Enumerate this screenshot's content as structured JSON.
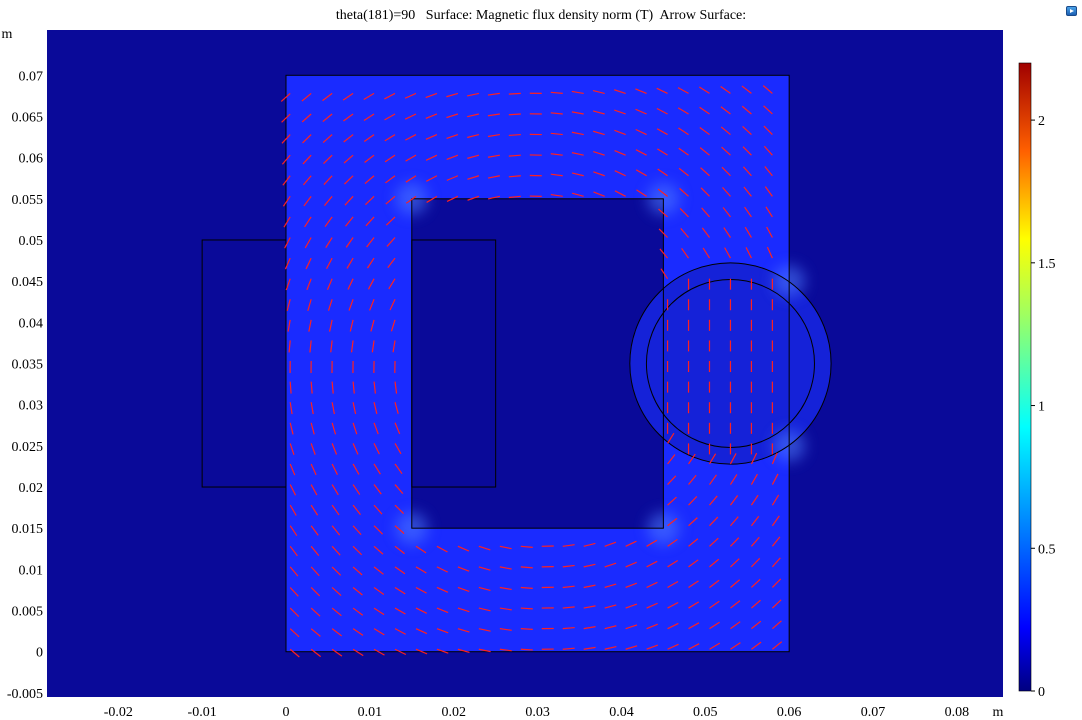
{
  "title": "theta(181)=90   Surface: Magnetic flux density norm (T)  Arrow Surface:",
  "chart_data": {
    "type": "heatmap",
    "title": "theta(181)=90   Surface: Magnetic flux density norm (T)  Arrow Surface:",
    "x_unit": "m",
    "y_unit": "m",
    "xlim": [
      -0.0285,
      0.0855
    ],
    "ylim": [
      -0.0055,
      0.0755
    ],
    "x_ticks": [
      -0.02,
      -0.01,
      0,
      0.01,
      0.02,
      0.03,
      0.04,
      0.05,
      0.06,
      0.07,
      0.08
    ],
    "x_tick_labels": [
      "-0.02",
      "-0.01",
      "0",
      "0.01",
      "0.02",
      "0.03",
      "0.04",
      "0.05",
      "0.06",
      "0.07",
      "0.08"
    ],
    "y_ticks": [
      -0.005,
      0,
      0.005,
      0.01,
      0.015,
      0.02,
      0.025,
      0.03,
      0.035,
      0.04,
      0.045,
      0.05,
      0.055,
      0.06,
      0.065,
      0.07
    ],
    "y_tick_labels": [
      "-0.005",
      "0",
      "0.005",
      "0.01",
      "0.015",
      "0.02",
      "0.025",
      "0.03",
      "0.035",
      "0.04",
      "0.045",
      "0.05",
      "0.055",
      "0.06",
      "0.065",
      "0.07"
    ],
    "colorbar": {
      "colormap": "rainbow",
      "range": [
        0,
        2.2
      ],
      "ticks": [
        0,
        0.5,
        1,
        1.5,
        2
      ],
      "tick_labels": [
        "0",
        "0.5",
        "1",
        "1.5",
        "2"
      ]
    },
    "geometry": {
      "core_outer": [
        0,
        0,
        0.06,
        0.07
      ],
      "core_window": [
        0.015,
        0.015,
        0.045,
        0.055
      ],
      "coil_left": [
        -0.01,
        0.02,
        0,
        0.05
      ],
      "coil_right": [
        0.015,
        0.02,
        0.025,
        0.05
      ],
      "rotor_center": [
        0.053,
        0.035
      ],
      "rotor_radius": 0.012
    },
    "colors": {
      "background_field": "#0a0a99",
      "core_field": "#1a2bff",
      "arrow": "#ff2020",
      "outline": "#000000"
    }
  }
}
